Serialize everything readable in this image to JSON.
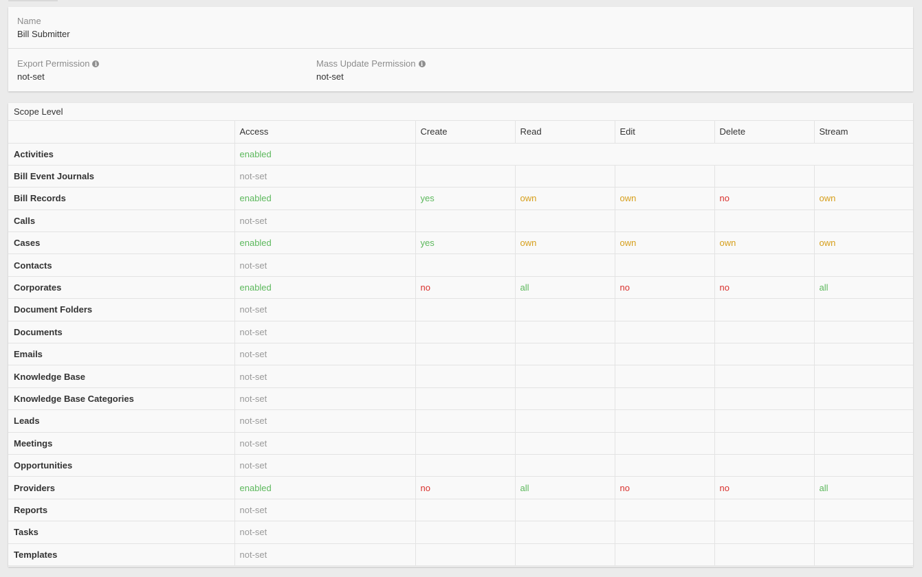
{
  "role": {
    "name_label": "Name",
    "name_value": "Bill Submitter",
    "export_label": "Export Permission",
    "export_value": "not-set",
    "mass_update_label": "Mass Update Permission",
    "mass_update_value": "not-set",
    "info_icon": "info-icon"
  },
  "scope": {
    "title": "Scope Level",
    "columns": [
      "",
      "Access",
      "Create",
      "Read",
      "Edit",
      "Delete",
      "Stream"
    ],
    "rows": [
      {
        "name": "Activities",
        "access": "enabled",
        "actions": null
      },
      {
        "name": "Bill Event Journals",
        "access": "not-set",
        "actions": [
          "",
          "",
          "",
          "",
          ""
        ]
      },
      {
        "name": "Bill Records",
        "access": "enabled",
        "actions": [
          "yes",
          "own",
          "own",
          "no",
          "own"
        ]
      },
      {
        "name": "Calls",
        "access": "not-set",
        "actions": [
          "",
          "",
          "",
          "",
          ""
        ]
      },
      {
        "name": "Cases",
        "access": "enabled",
        "actions": [
          "yes",
          "own",
          "own",
          "own",
          "own"
        ]
      },
      {
        "name": "Contacts",
        "access": "not-set",
        "actions": [
          "",
          "",
          "",
          "",
          ""
        ]
      },
      {
        "name": "Corporates",
        "access": "enabled",
        "actions": [
          "no",
          "all",
          "no",
          "no",
          "all"
        ]
      },
      {
        "name": "Document Folders",
        "access": "not-set",
        "actions": [
          "",
          "",
          "",
          "",
          ""
        ]
      },
      {
        "name": "Documents",
        "access": "not-set",
        "actions": [
          "",
          "",
          "",
          "",
          ""
        ]
      },
      {
        "name": "Emails",
        "access": "not-set",
        "actions": [
          "",
          "",
          "",
          "",
          ""
        ]
      },
      {
        "name": "Knowledge Base",
        "access": "not-set",
        "actions": [
          "",
          "",
          "",
          "",
          ""
        ]
      },
      {
        "name": "Knowledge Base Categories",
        "access": "not-set",
        "actions": [
          "",
          "",
          "",
          "",
          ""
        ]
      },
      {
        "name": "Leads",
        "access": "not-set",
        "actions": [
          "",
          "",
          "",
          "",
          ""
        ]
      },
      {
        "name": "Meetings",
        "access": "not-set",
        "actions": [
          "",
          "",
          "",
          "",
          ""
        ]
      },
      {
        "name": "Opportunities",
        "access": "not-set",
        "actions": [
          "",
          "",
          "",
          "",
          ""
        ]
      },
      {
        "name": "Providers",
        "access": "enabled",
        "actions": [
          "no",
          "all",
          "no",
          "no",
          "all"
        ]
      },
      {
        "name": "Reports",
        "access": "not-set",
        "actions": [
          "",
          "",
          "",
          "",
          ""
        ]
      },
      {
        "name": "Tasks",
        "access": "not-set",
        "actions": [
          "",
          "",
          "",
          "",
          ""
        ]
      },
      {
        "name": "Templates",
        "access": "not-set",
        "actions": [
          "",
          "",
          "",
          "",
          ""
        ]
      }
    ]
  },
  "colors": {
    "enabled": "#5cb85c",
    "not_set": "#999999",
    "own": "#d69e1a",
    "no": "#d9302c",
    "panel_bg": "#f9f9f9",
    "page_bg": "#ebebeb"
  }
}
